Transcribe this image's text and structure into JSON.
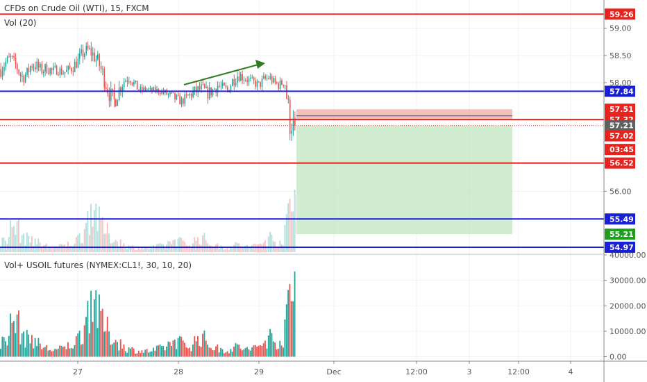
{
  "legend": {
    "symbol": "CFDs on Crude Oil (WTI), 15, FXCM",
    "vol": "Vol (20)",
    "vol_plus": "Vol+ USOIL futures (NYMEX:CL1!, 30, 10, 20)"
  },
  "colors": {
    "up": "#26a69a",
    "down": "#ef5350",
    "red_line": "#e8221c",
    "blue_line": "#1a1fd6",
    "green_arrow": "#2e7d1f",
    "stop_zone": "#f4a8a8",
    "target_zone": "#bfe6bf",
    "last_price": "#606060",
    "target_tag": "#1f9d1f"
  },
  "chart_data": [
    {
      "type": "candlestick",
      "price_axis_ticks": [
        "59.00",
        "58.50",
        "58.00",
        "56.00"
      ],
      "price_axis_tick_values": [
        59.0,
        58.5,
        58.0,
        56.0
      ],
      "x_ticks": [
        "27",
        "28",
        "29",
        "Dec",
        "12:00",
        "3",
        "12:00",
        "4"
      ],
      "ylim": [
        54.88,
        59.52
      ],
      "horizontal_levels": [
        {
          "label": "59.26",
          "value": 59.26,
          "color": "red"
        },
        {
          "label": "57.84",
          "value": 57.84,
          "color": "blue"
        },
        {
          "label": "57.32",
          "value": 57.32,
          "color": "red"
        },
        {
          "label": "56.52",
          "value": 56.52,
          "color": "red"
        },
        {
          "label": "55.49",
          "value": 55.49,
          "color": "blue"
        },
        {
          "label": "54.97",
          "value": 54.97,
          "color": "blue"
        }
      ],
      "price_tags": [
        {
          "label": "57.51",
          "value": 57.51,
          "color": "red"
        },
        {
          "label": "57.21",
          "value": 57.21,
          "color": "gray"
        },
        {
          "label": "57.02",
          "value": 57.02,
          "color": "red"
        },
        {
          "label": "03:45",
          "value": 56.77,
          "color": "red"
        },
        {
          "label": "55.21",
          "value": 55.21,
          "color": "green"
        }
      ],
      "position": {
        "entry": 57.32,
        "stop": 57.51,
        "target": 55.21,
        "last_price": 57.21
      },
      "close_path": [
        58.25,
        58.38,
        58.45,
        58.3,
        58.1,
        58.15,
        58.35,
        58.3,
        58.22,
        58.28,
        58.2,
        58.25,
        58.18,
        58.22,
        58.3,
        58.4,
        58.55,
        58.6,
        58.5,
        58.35,
        58.1,
        57.8,
        57.65,
        57.9,
        58.05,
        58.1,
        57.95,
        57.85,
        57.88,
        57.85,
        57.86,
        57.84,
        57.8,
        57.75,
        57.7,
        57.65,
        57.72,
        57.8,
        57.85,
        57.9,
        57.8,
        57.85,
        57.95,
        57.9,
        57.85,
        58.05,
        58.15,
        58.1,
        58.05,
        58.0,
        57.95,
        58.05,
        58.1,
        58.0,
        57.95,
        58.05,
        57.3,
        57.21
      ],
      "range_path": [
        0.35,
        0.3,
        0.3,
        0.25,
        0.35,
        0.3,
        0.4,
        0.3,
        0.25,
        0.3,
        0.25,
        0.25,
        0.2,
        0.25,
        0.3,
        0.3,
        0.35,
        0.3,
        0.35,
        0.4,
        0.45,
        0.4,
        0.45,
        0.35,
        0.3,
        0.25,
        0.25,
        0.2,
        0.15,
        0.15,
        0.15,
        0.15,
        0.2,
        0.25,
        0.25,
        0.2,
        0.25,
        0.3,
        0.3,
        0.25,
        0.3,
        0.3,
        0.3,
        0.25,
        0.25,
        0.3,
        0.3,
        0.25,
        0.25,
        0.2,
        0.25,
        0.25,
        0.25,
        0.2,
        0.25,
        0.3,
        0.8,
        0.4
      ],
      "volume_profile": [
        0.2,
        0.3,
        0.45,
        0.55,
        0.35,
        0.25,
        0.3,
        0.2,
        0.15,
        0.12,
        0.1,
        0.1,
        0.12,
        0.15,
        0.2,
        0.25,
        0.4,
        0.7,
        1.0,
        0.6,
        0.45,
        0.35,
        0.25,
        0.2,
        0.15,
        0.1,
        0.1,
        0.08,
        0.08,
        0.08,
        0.1,
        0.12,
        0.15,
        0.2,
        0.25,
        0.2,
        0.15,
        0.18,
        0.25,
        0.3,
        0.2,
        0.15,
        0.12,
        0.1,
        0.1,
        0.12,
        0.15,
        0.12,
        0.1,
        0.12,
        0.15,
        0.2,
        0.3,
        0.25,
        0.2,
        0.3,
        0.95,
        0.7
      ]
    },
    {
      "type": "bar",
      "title": "Vol+ USOIL futures (NYMEX:CL1!, 30, 10, 20)",
      "y_ticks": [
        "40000.00",
        "30000.00",
        "20000.00",
        "10000.00",
        "0.00"
      ],
      "y_tick_values": [
        40000,
        30000,
        20000,
        10000,
        0
      ],
      "ylim": [
        -1500,
        40000
      ],
      "peak_volume": 33500
    }
  ]
}
